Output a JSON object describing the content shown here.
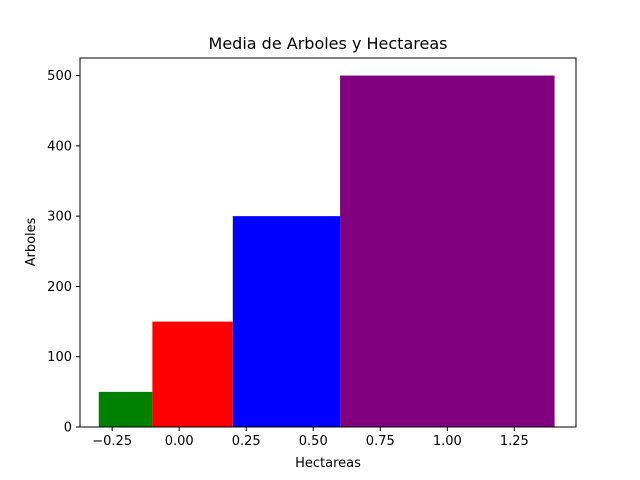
{
  "chart_data": {
    "type": "bar",
    "title": "Media de Arboles y Hectareas",
    "xlabel": "Hectareas",
    "ylabel": "Arboles",
    "xlim": [
      -0.37,
      1.48
    ],
    "ylim": [
      0,
      525
    ],
    "grid": false,
    "bars": [
      {
        "x_start": -0.3,
        "x_end": -0.1,
        "value": 50,
        "color": "#008000"
      },
      {
        "x_start": -0.1,
        "x_end": 0.2,
        "value": 150,
        "color": "#ff0000"
      },
      {
        "x_start": 0.2,
        "x_end": 0.6,
        "value": 300,
        "color": "#0000ff"
      },
      {
        "x_start": 0.6,
        "x_end": 1.4,
        "value": 500,
        "color": "#800080"
      }
    ],
    "x_ticks": [
      {
        "value": -0.25,
        "label": "−0.25"
      },
      {
        "value": 0.0,
        "label": "0.00"
      },
      {
        "value": 0.25,
        "label": "0.25"
      },
      {
        "value": 0.5,
        "label": "0.50"
      },
      {
        "value": 0.75,
        "label": "0.75"
      },
      {
        "value": 1.0,
        "label": "1.00"
      },
      {
        "value": 1.25,
        "label": "1.25"
      }
    ],
    "y_ticks": [
      {
        "value": 0,
        "label": "0"
      },
      {
        "value": 100,
        "label": "100"
      },
      {
        "value": 200,
        "label": "200"
      },
      {
        "value": 300,
        "label": "300"
      },
      {
        "value": 400,
        "label": "400"
      },
      {
        "value": 500,
        "label": "500"
      }
    ]
  }
}
